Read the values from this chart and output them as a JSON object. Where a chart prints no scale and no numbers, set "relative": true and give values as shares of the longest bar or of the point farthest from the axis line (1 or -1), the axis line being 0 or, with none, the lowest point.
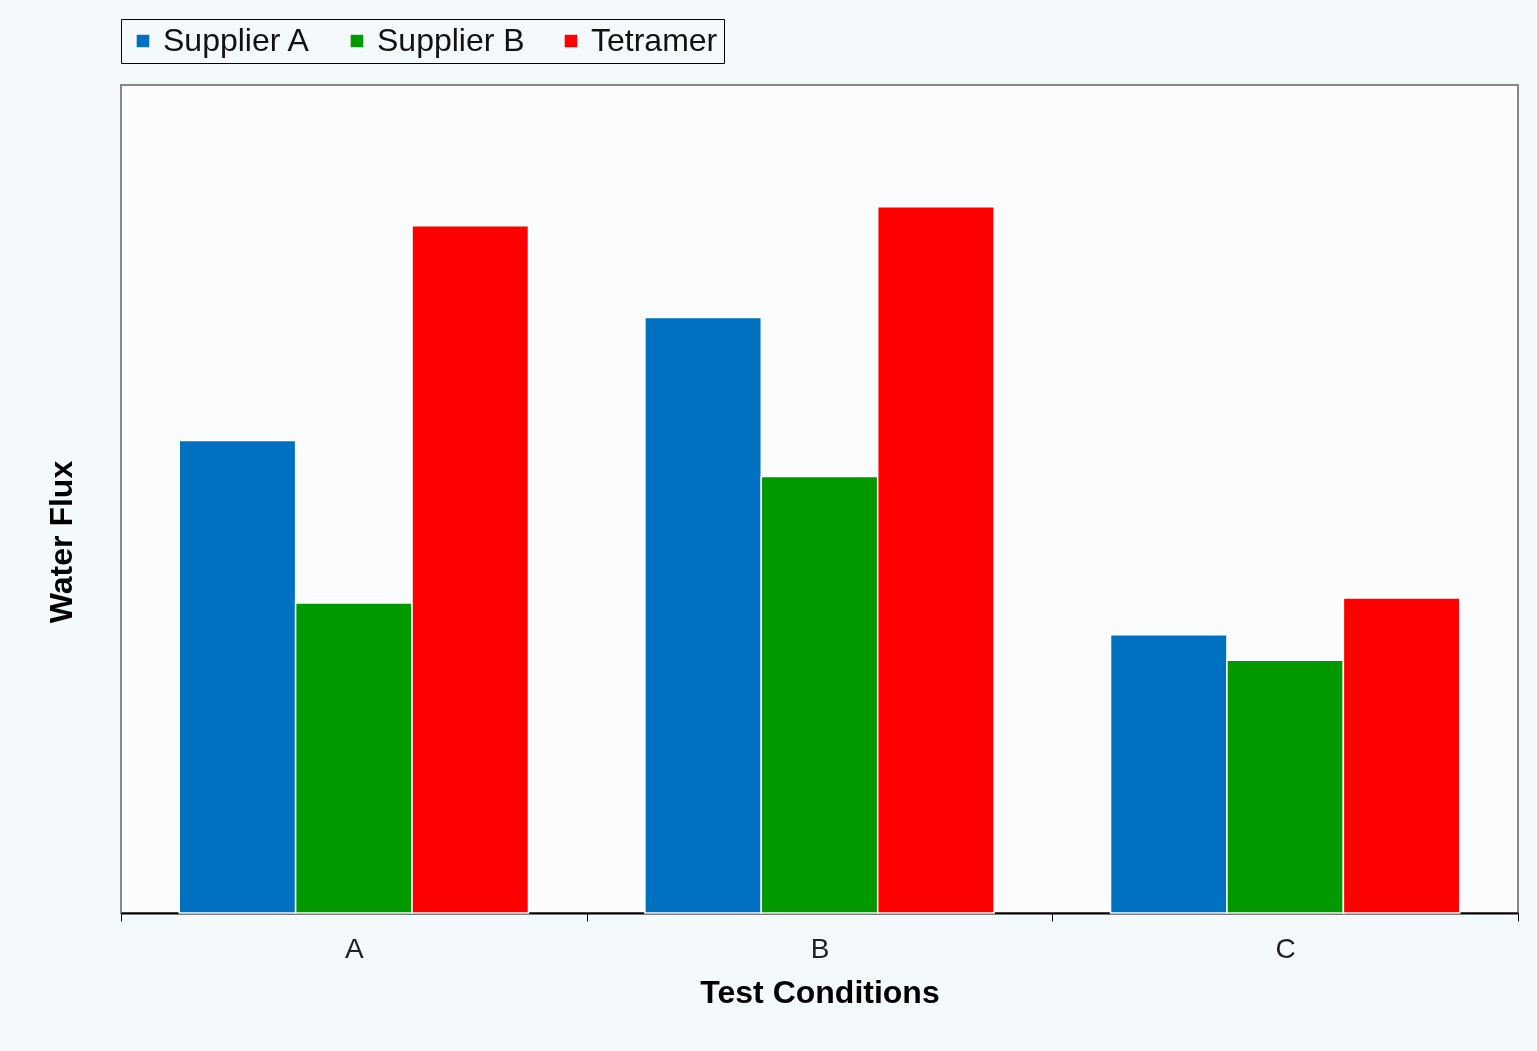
{
  "chart_data": {
    "type": "bar",
    "relative": true,
    "xlabel": "Test Conditions",
    "ylabel": "Water Flux",
    "categories": [
      "A",
      "B",
      "C"
    ],
    "legend": "top",
    "series": [
      {
        "name": "Supplier A",
        "color": "#0070c0",
        "values": [
          0.669,
          0.843,
          0.394
        ]
      },
      {
        "name": "Supplier B",
        "color": "#009900",
        "values": [
          0.439,
          0.618,
          0.358
        ]
      },
      {
        "name": "Tetramer",
        "color": "#ff0000",
        "values": [
          0.973,
          1,
          0.446
        ]
      }
    ]
  }
}
